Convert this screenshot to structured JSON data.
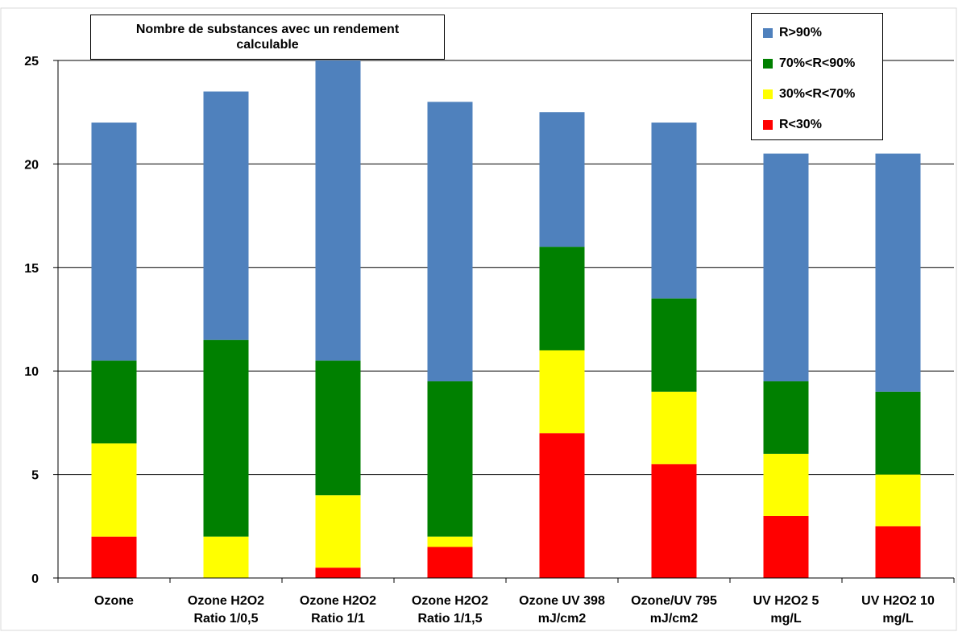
{
  "chart_data": {
    "type": "bar",
    "stacked": true,
    "title_lines": [
      "Nombre de substances avec un rendement",
      "calculable"
    ],
    "categories": [
      [
        "Ozone"
      ],
      [
        "Ozone H2O2",
        "Ratio 1/0,5"
      ],
      [
        "Ozone H2O2",
        "Ratio 1/1"
      ],
      [
        "Ozone H2O2",
        "Ratio 1/1,5"
      ],
      [
        "Ozone UV 398",
        "mJ/cm2"
      ],
      [
        "Ozone/UV 795",
        "mJ/cm2"
      ],
      [
        "UV H2O2 5",
        "mg/L"
      ],
      [
        "UV H2O2 10",
        "mg/L"
      ]
    ],
    "series": [
      {
        "name": "R<30%",
        "color": "#ff0000",
        "values": [
          2,
          0,
          0.5,
          1.5,
          7,
          5.5,
          3,
          2.5
        ]
      },
      {
        "name": "30%<R<70%",
        "color": "#ffff00",
        "values": [
          4.5,
          2,
          3.5,
          0.5,
          4,
          3.5,
          3,
          2.5
        ]
      },
      {
        "name": "70%<R<90%",
        "color": "#008000",
        "values": [
          4,
          9.5,
          6.5,
          7.5,
          5,
          4.5,
          3.5,
          4
        ]
      },
      {
        "name": "R>90%",
        "color": "#4f81bd",
        "values": [
          11.5,
          12,
          14.5,
          13.5,
          6.5,
          8.5,
          11,
          11.5
        ]
      }
    ],
    "legend_order": [
      "R>90%",
      "70%<R<90%",
      "30%<R<70%",
      "R<30%"
    ],
    "yticks": [
      0,
      5,
      10,
      15,
      20,
      25
    ],
    "ylim": [
      0,
      25
    ],
    "grid": true,
    "gridline_color": "#000000",
    "legend_position": "top-right"
  }
}
